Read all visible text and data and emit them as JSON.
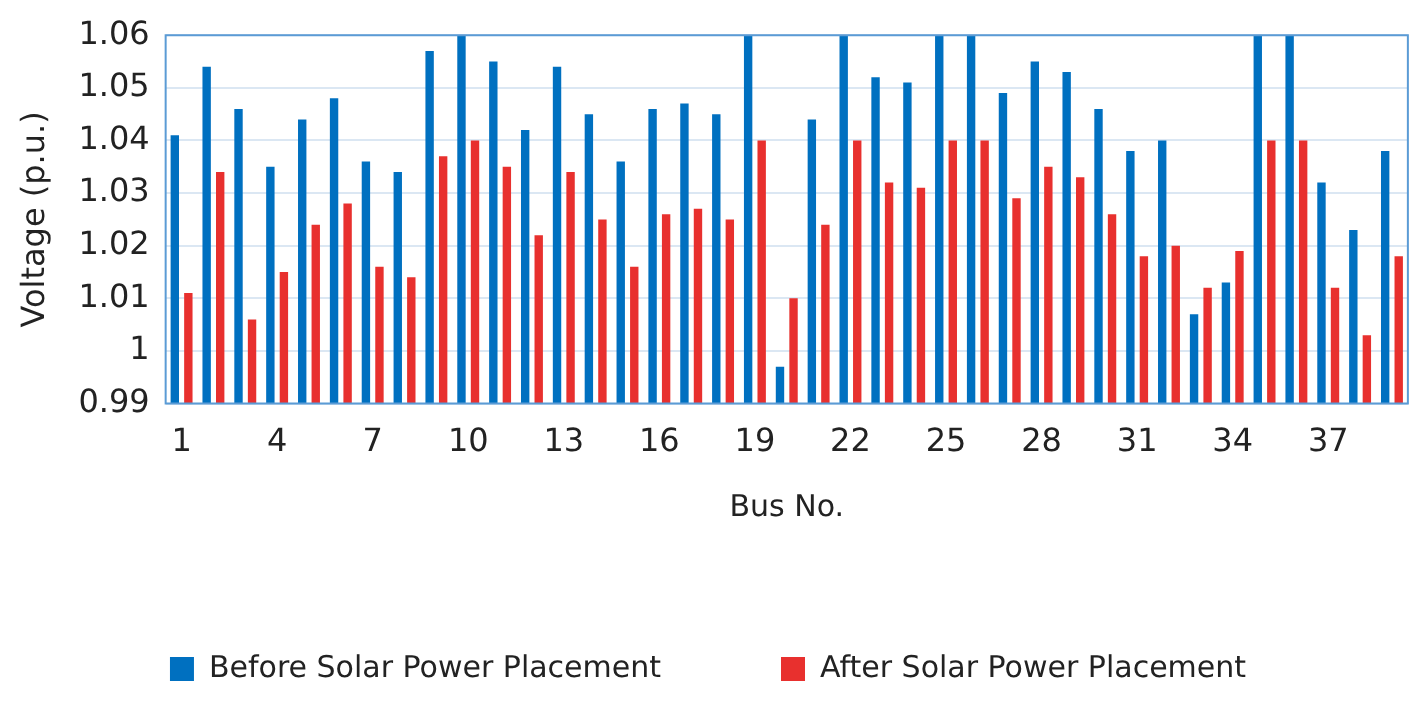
{
  "chart_data": {
    "type": "bar",
    "xlabel": "Bus No.",
    "ylabel": "Voltage (p.u.)",
    "categories": [
      "1",
      null,
      null,
      "4",
      null,
      null,
      "7",
      null,
      null,
      "10",
      null,
      null,
      "13",
      null,
      null,
      "16",
      null,
      null,
      "19",
      null,
      null,
      "22",
      null,
      null,
      "25",
      null,
      null,
      "28",
      null,
      null,
      "31",
      null,
      null,
      "34",
      null,
      null,
      "37",
      null,
      null
    ],
    "series": [
      {
        "name": "Before Solar Power Placement",
        "color": "#0070c0",
        "values": [
          1.041,
          1.054,
          1.046,
          1.035,
          1.044,
          1.048,
          1.036,
          1.034,
          1.057,
          1.06,
          1.055,
          1.042,
          1.054,
          1.045,
          1.036,
          1.046,
          1.047,
          1.045,
          1.06,
          0.997,
          1.044,
          1.06,
          1.052,
          1.051,
          1.06,
          1.06,
          1.049,
          1.055,
          1.053,
          1.046,
          1.038,
          1.04,
          1.007,
          1.013,
          1.06,
          1.06,
          1.032,
          1.023,
          1.038
        ]
      },
      {
        "name": "After Solar Power Placement",
        "color": "#e8302e",
        "values": [
          1.011,
          1.034,
          1.006,
          1.015,
          1.024,
          1.028,
          1.016,
          1.014,
          1.037,
          1.04,
          1.035,
          1.022,
          1.034,
          1.025,
          1.016,
          1.026,
          1.027,
          1.025,
          1.04,
          1.01,
          1.024,
          1.04,
          1.032,
          1.031,
          1.04,
          1.04,
          1.029,
          1.035,
          1.033,
          1.026,
          1.018,
          1.02,
          1.012,
          1.019,
          1.04,
          1.04,
          1.012,
          1.003,
          1.018
        ]
      }
    ],
    "ylim": [
      0.99,
      1.06
    ],
    "yticks": [
      0.99,
      1,
      1.01,
      1.02,
      1.03,
      1.04,
      1.05,
      1.06
    ],
    "grid": "y",
    "legend": "bottom"
  }
}
